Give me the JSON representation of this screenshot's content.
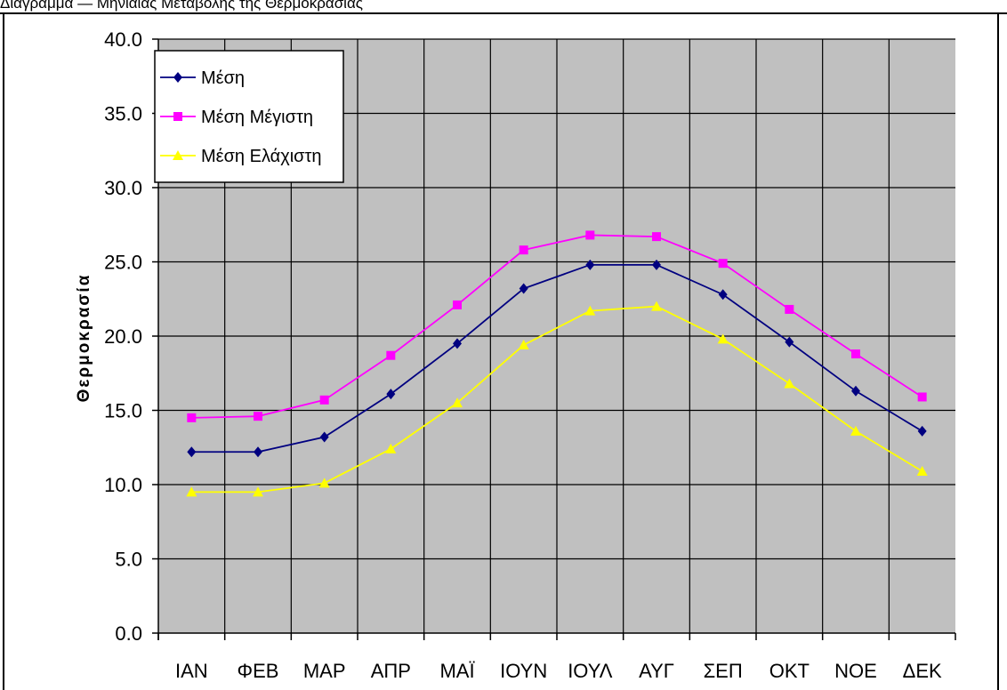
{
  "page": {
    "caption": "Διάγραμμα — Μηνιαίας Μεταβολής της Θερμοκρασίας"
  },
  "chart_data": {
    "type": "line",
    "title": "",
    "xlabel": "",
    "ylabel": "Θερμοκρασία",
    "ylim": [
      0,
      40
    ],
    "y_ticks": [
      "0.0",
      "5.0",
      "10.0",
      "15.0",
      "20.0",
      "25.0",
      "30.0",
      "35.0",
      "40.0"
    ],
    "categories": [
      "ΙΑΝ",
      "ΦΕΒ",
      "ΜΑΡ",
      "ΑΠΡ",
      "ΜΑΪ",
      "ΙΟΥΝ",
      "ΙΟΥΛ",
      "ΑΥΓ",
      "ΣΕΠ",
      "ΟΚΤ",
      "ΝΟΕ",
      "ΔΕΚ"
    ],
    "grid": true,
    "legend_position": "top-left",
    "plot_background": "#c0c0c0",
    "series": [
      {
        "name": "Μέση",
        "color": "#000080",
        "marker": "diamond",
        "values": [
          12.2,
          12.2,
          13.2,
          16.1,
          19.5,
          23.2,
          24.8,
          24.8,
          22.8,
          19.6,
          16.3,
          13.6
        ]
      },
      {
        "name": "Μέση Μέγιστη",
        "color": "#ff00ff",
        "marker": "square",
        "values": [
          14.5,
          14.6,
          15.7,
          18.7,
          22.1,
          25.8,
          26.8,
          26.7,
          24.9,
          21.8,
          18.8,
          15.9
        ]
      },
      {
        "name": "Μέση Ελάχιστη",
        "color": "#ffff00",
        "marker": "triangle",
        "values": [
          9.5,
          9.5,
          10.1,
          12.4,
          15.5,
          19.4,
          21.7,
          22.0,
          19.8,
          16.8,
          13.6,
          10.9
        ]
      }
    ]
  }
}
